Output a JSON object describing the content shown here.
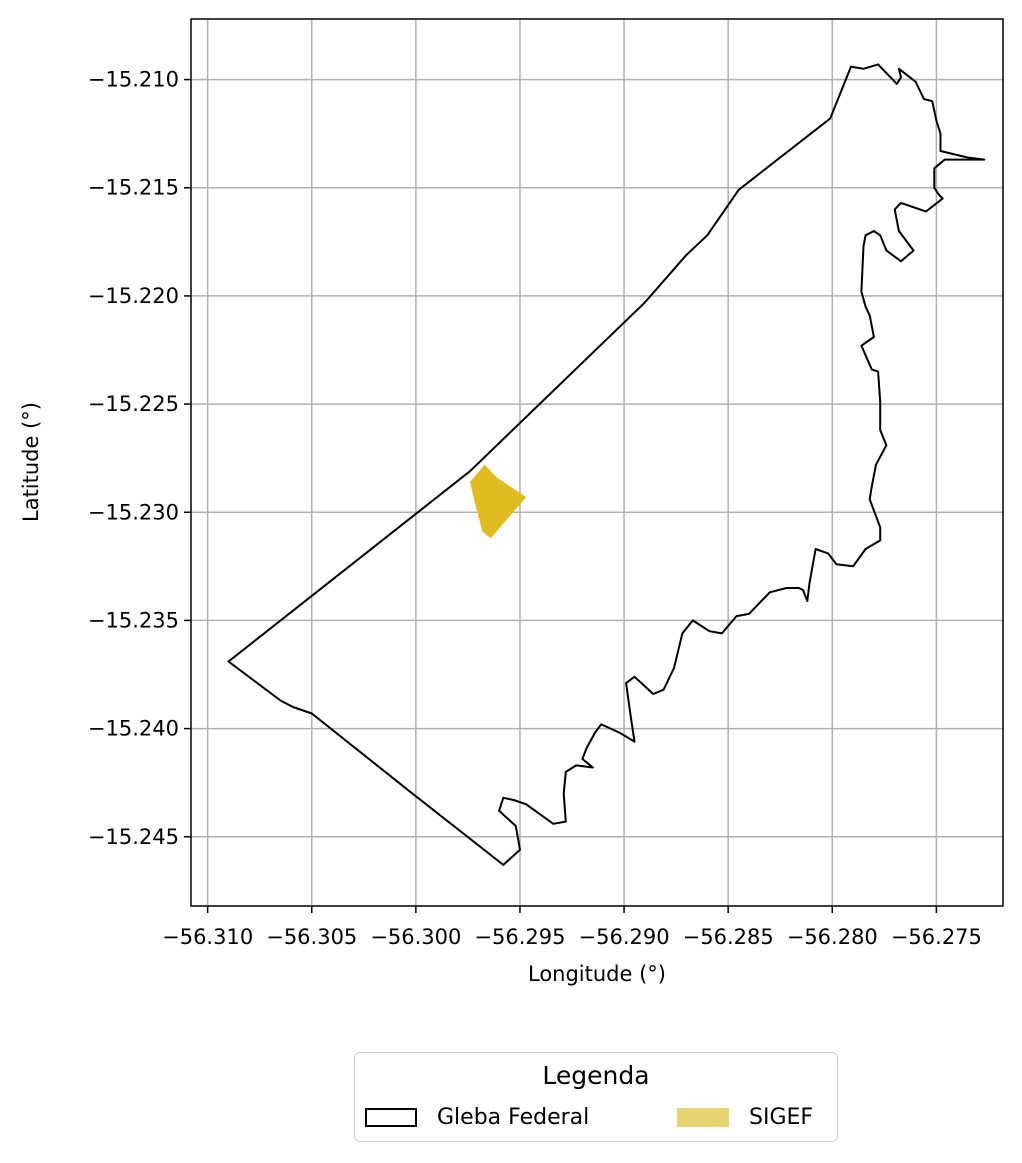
{
  "chart_data": {
    "type": "map",
    "xlabel": "Longitude (°)",
    "ylabel": "Latitude (°)",
    "xlim": [
      -56.3108,
      -56.2718
    ],
    "ylim": [
      -15.2482,
      -15.2072
    ],
    "xticks": [
      -56.31,
      -56.305,
      -56.3,
      -56.295,
      -56.29,
      -56.285,
      -56.28,
      -56.275
    ],
    "xtick_labels": [
      "−56.310",
      "−56.305",
      "−56.300",
      "−56.295",
      "−56.290",
      "−56.285",
      "−56.280",
      "−56.275"
    ],
    "yticks": [
      -15.21,
      -15.215,
      -15.22,
      -15.225,
      -15.23,
      -15.235,
      -15.24,
      -15.245
    ],
    "ytick_labels": [
      "−15.210",
      "−15.215",
      "−15.220",
      "−15.225",
      "−15.230",
      "−15.235",
      "−15.240",
      "−15.245"
    ],
    "grid": true,
    "legend": {
      "title": "Legenda",
      "placement": "bottom-center",
      "entries": [
        {
          "label": "Gleba Federal",
          "style": "outline",
          "color": "#000000"
        },
        {
          "label": "SIGEF",
          "style": "fill",
          "color": "#e8d372"
        }
      ]
    },
    "layers": [
      {
        "name": "Gleba Federal",
        "style": "outline",
        "stroke": "#000000",
        "coordinates": [
          [
            -56.309,
            -15.2369
          ],
          [
            -56.2974,
            -15.2281
          ],
          [
            -56.289,
            -15.2203
          ],
          [
            -56.287,
            -15.2181
          ],
          [
            -56.286,
            -15.2172
          ],
          [
            -56.2845,
            -15.2151
          ],
          [
            -56.2801,
            -15.2118
          ],
          [
            -56.2791,
            -15.2094
          ],
          [
            -56.2785,
            -15.2095
          ],
          [
            -56.2778,
            -15.2093
          ],
          [
            -56.2771,
            -15.21
          ],
          [
            -56.2769,
            -15.2102
          ],
          [
            -56.2767,
            -15.2099
          ],
          [
            -56.2768,
            -15.2095
          ],
          [
            -56.276,
            -15.2101
          ],
          [
            -56.2756,
            -15.2109
          ],
          [
            -56.2752,
            -15.211
          ],
          [
            -56.275,
            -15.2119
          ],
          [
            -56.2748,
            -15.2125
          ],
          [
            -56.2748,
            -15.2133
          ],
          [
            -56.2735,
            -15.2136
          ],
          [
            -56.2727,
            -15.2137
          ],
          [
            -56.2737,
            -15.2137
          ],
          [
            -56.2746,
            -15.2137
          ],
          [
            -56.2751,
            -15.2141
          ],
          [
            -56.2751,
            -15.215
          ],
          [
            -56.2749,
            -15.2153
          ],
          [
            -56.2747,
            -15.2155
          ],
          [
            -56.2755,
            -15.2161
          ],
          [
            -56.2767,
            -15.2157
          ],
          [
            -56.277,
            -15.216
          ],
          [
            -56.2768,
            -15.217
          ],
          [
            -56.2761,
            -15.2179
          ],
          [
            -56.2767,
            -15.2184
          ],
          [
            -56.2774,
            -15.2179
          ],
          [
            -56.2777,
            -15.2172
          ],
          [
            -56.278,
            -15.217
          ],
          [
            -56.2784,
            -15.2172
          ],
          [
            -56.2785,
            -15.2177
          ],
          [
            -56.2786,
            -15.2198
          ],
          [
            -56.2784,
            -15.2205
          ],
          [
            -56.2782,
            -15.2209
          ],
          [
            -56.278,
            -15.2219
          ],
          [
            -56.2786,
            -15.2223
          ],
          [
            -56.2781,
            -15.2234
          ],
          [
            -56.2778,
            -15.2235
          ],
          [
            -56.2777,
            -15.2249
          ],
          [
            -56.2777,
            -15.2262
          ],
          [
            -56.2774,
            -15.2269
          ],
          [
            -56.2779,
            -15.2278
          ],
          [
            -56.2781,
            -15.2288
          ],
          [
            -56.2782,
            -15.2294
          ],
          [
            -56.2777,
            -15.2307
          ],
          [
            -56.2777,
            -15.2313
          ],
          [
            -56.2784,
            -15.2317
          ],
          [
            -56.279,
            -15.2325
          ],
          [
            -56.2798,
            -15.2324
          ],
          [
            -56.2802,
            -15.2319
          ],
          [
            -56.2808,
            -15.2317
          ],
          [
            -56.2811,
            -15.2333
          ],
          [
            -56.2812,
            -15.2341
          ],
          [
            -56.2814,
            -15.2336
          ],
          [
            -56.2816,
            -15.2335
          ],
          [
            -56.2822,
            -15.2335
          ],
          [
            -56.283,
            -15.2337
          ],
          [
            -56.284,
            -15.2347
          ],
          [
            -56.2846,
            -15.2348
          ],
          [
            -56.2853,
            -15.2356
          ],
          [
            -56.2859,
            -15.2355
          ],
          [
            -56.2867,
            -15.235
          ],
          [
            -56.2872,
            -15.2356
          ],
          [
            -56.2874,
            -15.2364
          ],
          [
            -56.2876,
            -15.2372
          ],
          [
            -56.2881,
            -15.2382
          ],
          [
            -56.2886,
            -15.2384
          ],
          [
            -56.2895,
            -15.2376
          ],
          [
            -56.2899,
            -15.2379
          ],
          [
            -56.2897,
            -15.2393
          ],
          [
            -56.2895,
            -15.2406
          ],
          [
            -56.2902,
            -15.2402
          ],
          [
            -56.2911,
            -15.2398
          ],
          [
            -56.2914,
            -15.2402
          ],
          [
            -56.2918,
            -15.2409
          ],
          [
            -56.292,
            -15.2414
          ],
          [
            -56.2915,
            -15.2418
          ],
          [
            -56.2923,
            -15.2417
          ],
          [
            -56.2928,
            -15.242
          ],
          [
            -56.2929,
            -15.243
          ],
          [
            -56.2928,
            -15.2443
          ],
          [
            -56.2934,
            -15.2444
          ],
          [
            -56.2947,
            -15.2435
          ],
          [
            -56.2953,
            -15.2433
          ],
          [
            -56.2958,
            -15.2432
          ],
          [
            -56.296,
            -15.2438
          ],
          [
            -56.2952,
            -15.2445
          ],
          [
            -56.295,
            -15.2456
          ],
          [
            -56.2958,
            -15.2463
          ],
          [
            -56.3003,
            -15.2429
          ],
          [
            -56.305,
            -15.2393
          ],
          [
            -56.3059,
            -15.239
          ],
          [
            -56.3065,
            -15.2387
          ],
          [
            -56.309,
            -15.2369
          ]
        ]
      },
      {
        "name": "SIGEF",
        "style": "fill",
        "fill": "#dfbc1f",
        "coordinates": [
          [
            -56.2967,
            -15.2278
          ],
          [
            -56.2961,
            -15.2284
          ],
          [
            -56.2947,
            -15.2293
          ],
          [
            -56.2964,
            -15.2312
          ],
          [
            -56.2968,
            -15.2309
          ],
          [
            -56.2971,
            -15.2298
          ],
          [
            -56.2974,
            -15.2286
          ],
          [
            -56.2967,
            -15.2278
          ]
        ]
      }
    ]
  }
}
